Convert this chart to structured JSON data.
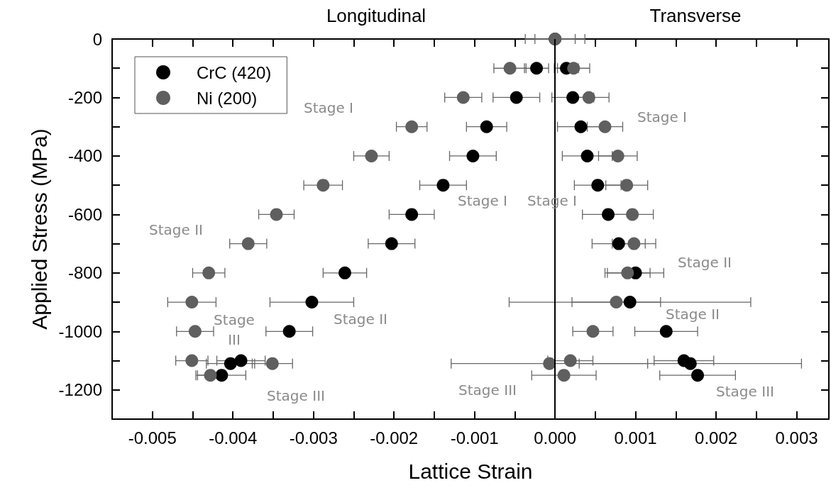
{
  "chart_data": {
    "type": "scatter",
    "xlabel": "Lattice Strain",
    "ylabel": "Applied Stress (MPa)",
    "xlim": [
      -0.0055,
      0.0034
    ],
    "ylim": [
      -1300,
      0
    ],
    "xticks": [
      -0.005,
      {
        "value": -0.0045,
        "label": null
      },
      -0.004,
      {
        "value": -0.0035,
        "label": null
      },
      -0.003,
      {
        "value": -0.0025,
        "label": null
      },
      -0.002,
      {
        "value": -0.0015,
        "label": null
      },
      -0.001,
      {
        "value": -0.0005,
        "label": null
      },
      {
        "value": 0,
        "label": "0.000"
      },
      {
        "value": 0.0005,
        "label": null
      },
      0.001,
      {
        "value": 0.0015,
        "label": null
      },
      0.002,
      {
        "value": 0.0025,
        "label": null
      },
      0.003
    ],
    "yticks": [
      -1200,
      {
        "value": -1100,
        "label": null
      },
      -1000,
      {
        "value": -900,
        "label": null
      },
      -800,
      {
        "value": -700,
        "label": null
      },
      -600,
      {
        "value": -500,
        "label": null
      },
      -400,
      {
        "value": -300,
        "label": null
      },
      -200,
      {
        "value": -100,
        "label": null
      },
      0
    ],
    "legend": "top left",
    "marker": "circle",
    "grid": false,
    "series": [
      {
        "name": "CrC (420)",
        "color": "#000000",
        "x": [
          0,
          -0.00023,
          0.00014,
          -0.00048,
          0.00022,
          -0.00085,
          0.00032,
          -0.00102,
          0.0004,
          -0.00139,
          0.00053,
          -0.00178,
          0.00066,
          -0.00203,
          0.00079,
          -0.00261,
          0.001,
          -0.00302,
          0.00093,
          -0.0033,
          0.00138,
          -0.0039,
          0.0016,
          -0.00403,
          0.00168,
          -0.00414,
          0.00177
        ],
        "values": [
          0,
          -100,
          -100,
          -200,
          -200,
          -300,
          -300,
          -400,
          -400,
          -500,
          -500,
          -600,
          -600,
          -700,
          -700,
          -800,
          -800,
          -900,
          -900,
          -1000,
          -1000,
          -1100,
          -1100,
          -1110,
          -1110,
          -1150,
          -1150
        ],
        "xerrors": [
          0.00025,
          0.00015,
          0.00015,
          0.00029,
          0.00026,
          0.00025,
          0.00029,
          0.00029,
          0.00031,
          0.00029,
          0.00029,
          0.00028,
          0.00032,
          0.00029,
          0.00033,
          0.00027,
          0.00035,
          0.00052,
          0.0015,
          0.00029,
          0.00039,
          0.0003,
          0.00037,
          0.0003,
          0.00138,
          0.0003,
          0.00047
        ]
      },
      {
        "name": "Ni (200)",
        "color": "#5f5f5f",
        "x": [
          0,
          -0.00056,
          0.00023,
          -0.00114,
          0.00042,
          -0.00178,
          0.00062,
          -0.00228,
          0.00078,
          -0.00288,
          0.00089,
          -0.00346,
          0.00096,
          -0.00381,
          0.00098,
          -0.0043,
          0.0009,
          -0.00451,
          0.00076,
          -0.00447,
          0.00047,
          -0.00451,
          0.00019,
          -0.00351,
          -7e-05,
          -0.00428,
          0.00011
        ],
        "values": [
          0,
          -100,
          -100,
          -200,
          -200,
          -300,
          -300,
          -400,
          -400,
          -500,
          -500,
          -600,
          -600,
          -700,
          -700,
          -800,
          -800,
          -900,
          -900,
          -1000,
          -1000,
          -1100,
          -1100,
          -1110,
          -1110,
          -1150,
          -1150
        ],
        "xerrors": [
          0.00037,
          0.0002,
          0.0002,
          0.00023,
          0.00025,
          0.00019,
          0.00022,
          0.00022,
          0.00024,
          0.00024,
          0.00026,
          0.00022,
          0.00026,
          0.00023,
          0.00027,
          0.0002,
          0.00028,
          0.0003,
          0.00055,
          0.00023,
          0.00025,
          0.0002,
          0.00028,
          0.00025,
          0.00122,
          0.00018,
          0.0004
        ]
      }
    ],
    "ref_lines": [
      {
        "axis": "x",
        "value": 0,
        "color": "#000000"
      }
    ],
    "annotations": [
      "Longitudinal",
      "Transverse",
      "Stage I",
      "Stage I",
      "Stage I",
      "Stage I",
      "Stage II",
      "Stage II",
      "Stage II",
      "Stage II",
      "Stage\nIII",
      "Stage III",
      "Stage III",
      "Stage III"
    ]
  }
}
